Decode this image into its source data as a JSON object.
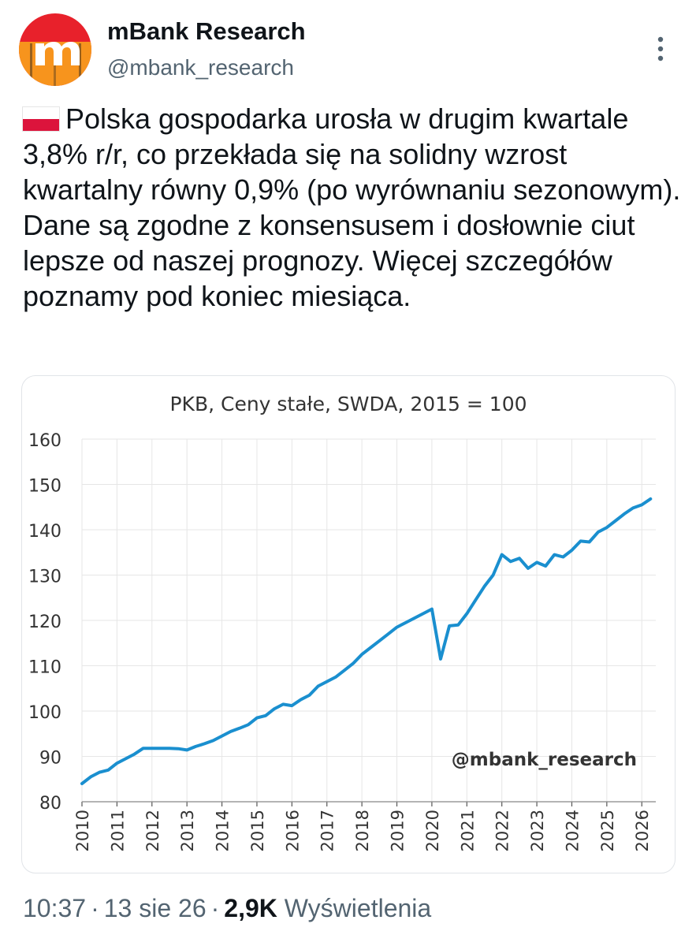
{
  "account": {
    "display_name": "mBank Research",
    "handle": "@mbank_research"
  },
  "tweet": {
    "flag_icon": "poland-flag-icon",
    "text": "Polska gospodarka urosła w drugim kwartale 3,8% r/r, co przekłada się na solidny wzrost kwartalny równy 0,9% (po wyrównaniu sezonowym). Dane są zgodne z konsensusem i dosłownie ciut lepsze od naszej prognozy. Więcej szczegółów poznamy pod koniec miesiąca."
  },
  "meta": {
    "time": "10:37",
    "date": "13 sie 26",
    "views_count": "2,9K",
    "views_label": "Wyświetlenia"
  },
  "colors": {
    "line": "#1a8fcf",
    "grid": "#e6e6e6",
    "text": "#0f1419",
    "muted": "#536471"
  },
  "chart_data": {
    "type": "line",
    "title": "PKB, Ceny stałe, SWDA, 2015 = 100",
    "watermark": "@mbank_research",
    "xlabel": "",
    "ylabel": "",
    "ylim": [
      80,
      160
    ],
    "xlim": [
      2010,
      2026.4
    ],
    "yticks": [
      80,
      90,
      100,
      110,
      120,
      130,
      140,
      150,
      160
    ],
    "xticks": [
      "2010",
      "2011",
      "2012",
      "2013",
      "2014",
      "2015",
      "2016",
      "2017",
      "2018",
      "2019",
      "2020",
      "2021",
      "2022",
      "2023",
      "2024",
      "2025",
      "2026"
    ],
    "grid": true,
    "series": [
      {
        "values": [
          [
            2010.0,
            84.0
          ],
          [
            2010.25,
            85.5
          ],
          [
            2010.5,
            86.5
          ],
          [
            2010.75,
            87.0
          ],
          [
            2011.0,
            88.5
          ],
          [
            2011.25,
            89.5
          ],
          [
            2011.5,
            90.5
          ],
          [
            2011.75,
            91.8
          ],
          [
            2012.0,
            91.8
          ],
          [
            2012.25,
            91.8
          ],
          [
            2012.5,
            91.8
          ],
          [
            2012.75,
            91.7
          ],
          [
            2013.0,
            91.4
          ],
          [
            2013.25,
            92.2
          ],
          [
            2013.5,
            92.8
          ],
          [
            2013.75,
            93.5
          ],
          [
            2014.0,
            94.5
          ],
          [
            2014.25,
            95.5
          ],
          [
            2014.5,
            96.2
          ],
          [
            2014.75,
            97.0
          ],
          [
            2015.0,
            98.5
          ],
          [
            2015.25,
            99.0
          ],
          [
            2015.5,
            100.5
          ],
          [
            2015.75,
            101.5
          ],
          [
            2016.0,
            101.2
          ],
          [
            2016.25,
            102.5
          ],
          [
            2016.5,
            103.5
          ],
          [
            2016.75,
            105.5
          ],
          [
            2017.0,
            106.5
          ],
          [
            2017.25,
            107.5
          ],
          [
            2017.5,
            109.0
          ],
          [
            2017.75,
            110.5
          ],
          [
            2018.0,
            112.5
          ],
          [
            2018.25,
            114.0
          ],
          [
            2018.5,
            115.5
          ],
          [
            2018.75,
            117.0
          ],
          [
            2019.0,
            118.5
          ],
          [
            2019.25,
            119.5
          ],
          [
            2019.5,
            120.5
          ],
          [
            2019.75,
            121.5
          ],
          [
            2020.0,
            122.5
          ],
          [
            2020.25,
            111.5
          ],
          [
            2020.5,
            118.8
          ],
          [
            2020.75,
            119.0
          ],
          [
            2021.0,
            121.5
          ],
          [
            2021.25,
            124.5
          ],
          [
            2021.5,
            127.5
          ],
          [
            2021.75,
            130.0
          ],
          [
            2022.0,
            134.5
          ],
          [
            2022.25,
            133.0
          ],
          [
            2022.5,
            133.7
          ],
          [
            2022.75,
            131.5
          ],
          [
            2023.0,
            132.8
          ],
          [
            2023.25,
            132.0
          ],
          [
            2023.5,
            134.5
          ],
          [
            2023.75,
            134.0
          ],
          [
            2024.0,
            135.5
          ],
          [
            2024.25,
            137.5
          ],
          [
            2024.5,
            137.3
          ],
          [
            2024.75,
            139.5
          ],
          [
            2025.0,
            140.5
          ],
          [
            2025.25,
            142.0
          ],
          [
            2025.5,
            143.5
          ],
          [
            2025.75,
            144.8
          ],
          [
            2026.0,
            145.5
          ],
          [
            2026.25,
            146.8
          ]
        ]
      }
    ]
  }
}
